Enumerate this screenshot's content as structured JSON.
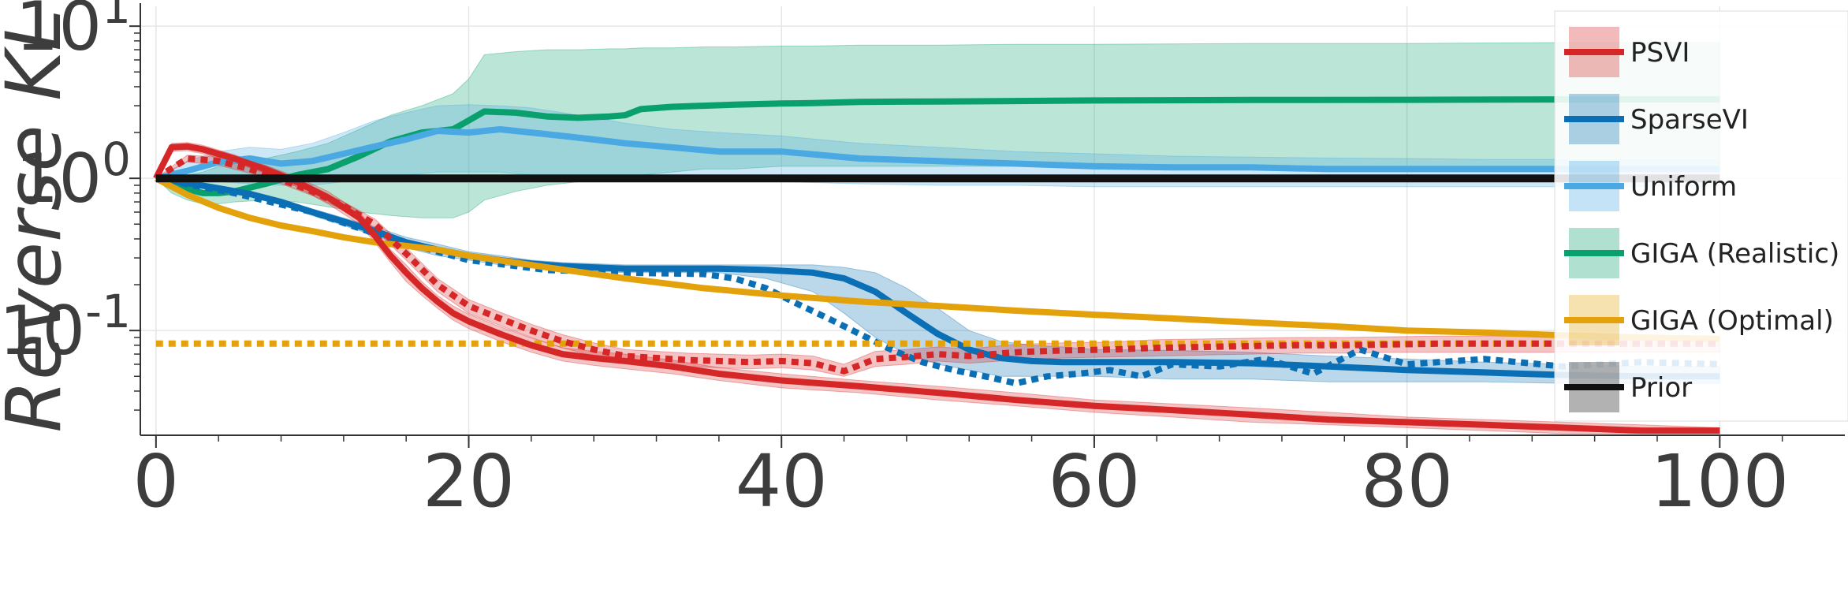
{
  "chart_data": {
    "type": "line",
    "title": "",
    "xlabel": "",
    "ylabel": "Reverse KL",
    "yscale": "log",
    "xlim": [
      -1,
      108
    ],
    "ylim": [
      0.0205,
      13.5
    ],
    "xticks": [
      0,
      20,
      40,
      60,
      80,
      100
    ],
    "xtick_labels": [
      "0",
      "20",
      "40",
      "60",
      "80",
      "100"
    ],
    "yticks": [
      {
        "value": 10,
        "base": "10",
        "exp": "1"
      },
      {
        "value": 1,
        "base": "10",
        "exp": "0"
      },
      {
        "value": 0.1,
        "base": "10",
        "exp": "-1"
      }
    ],
    "grid": true,
    "legend_position": "right",
    "legend": [
      {
        "label": "PSVI",
        "color": "#d62728"
      },
      {
        "label": "SparseVI",
        "color": "#0a6fb5"
      },
      {
        "label": "Uniform",
        "color": "#4aa8e3"
      },
      {
        "label": "GIGA (Realistic)",
        "color": "#0aa06e"
      },
      {
        "label": "GIGA (Optimal)",
        "color": "#e3a20b"
      },
      {
        "label": "Prior",
        "color": "#111111"
      }
    ],
    "series": [
      {
        "name": "GIGA (Realistic)",
        "color": "#0aa06e",
        "style": "solid",
        "x": [
          0,
          1,
          2,
          3,
          4,
          5,
          7,
          9,
          11,
          13,
          15,
          17,
          19,
          20,
          21,
          23,
          25,
          27,
          29,
          30,
          31,
          33,
          35,
          37,
          40,
          42,
          45,
          50,
          55,
          60,
          70,
          80,
          90,
          100
        ],
        "y": [
          1.0,
          0.9,
          0.85,
          0.8,
          0.8,
          0.82,
          0.92,
          1.05,
          1.15,
          1.4,
          1.75,
          2.0,
          2.1,
          2.4,
          2.75,
          2.7,
          2.55,
          2.5,
          2.55,
          2.6,
          2.85,
          2.95,
          3.0,
          3.05,
          3.1,
          3.12,
          3.18,
          3.2,
          3.22,
          3.25,
          3.27,
          3.28,
          3.3,
          3.3
        ],
        "band_low": [
          1.0,
          0.8,
          0.72,
          0.68,
          0.68,
          0.7,
          0.72,
          0.7,
          0.65,
          0.6,
          0.57,
          0.55,
          0.55,
          0.6,
          0.72,
          0.82,
          0.9,
          0.95,
          1.0,
          1.0,
          1.05,
          1.1,
          1.15,
          1.15,
          1.2,
          1.2,
          1.2,
          1.2,
          1.2,
          1.2,
          1.2,
          1.2,
          1.2,
          1.2
        ],
        "band_high": [
          1.0,
          1.05,
          1.05,
          1.1,
          1.2,
          1.25,
          1.35,
          1.5,
          1.7,
          2.1,
          2.6,
          3.0,
          3.6,
          4.5,
          6.5,
          6.8,
          7.0,
          7.0,
          7.1,
          7.1,
          7.2,
          7.2,
          7.3,
          7.3,
          7.4,
          7.4,
          7.5,
          7.5,
          7.6,
          7.6,
          7.7,
          7.7,
          7.8,
          7.8
        ]
      },
      {
        "name": "Uniform",
        "color": "#4aa8e3",
        "style": "solid",
        "x": [
          0,
          2,
          4,
          6,
          8,
          10,
          12,
          14,
          16,
          18,
          20,
          22,
          24,
          26,
          28,
          30,
          33,
          36,
          40,
          45,
          50,
          55,
          60,
          65,
          70,
          75,
          80,
          85,
          90,
          95,
          100
        ],
        "y": [
          1.0,
          1.12,
          1.28,
          1.35,
          1.25,
          1.3,
          1.45,
          1.62,
          1.8,
          2.05,
          2.0,
          2.1,
          2.0,
          1.9,
          1.8,
          1.7,
          1.6,
          1.5,
          1.5,
          1.35,
          1.3,
          1.25,
          1.2,
          1.18,
          1.18,
          1.15,
          1.15,
          1.15,
          1.15,
          1.15,
          1.15
        ],
        "band_low": [
          1.0,
          0.95,
          0.95,
          0.92,
          0.9,
          0.9,
          0.95,
          1.0,
          1.05,
          1.1,
          1.1,
          1.1,
          1.05,
          1.05,
          1.0,
          1.0,
          0.97,
          0.95,
          0.95,
          0.92,
          0.9,
          0.9,
          0.88,
          0.88,
          0.88,
          0.88,
          0.88,
          0.88,
          0.88,
          0.88,
          0.88
        ],
        "band_high": [
          1.0,
          1.3,
          1.5,
          1.6,
          1.55,
          1.7,
          2.0,
          2.4,
          2.7,
          3.0,
          3.05,
          3.0,
          2.9,
          2.7,
          2.5,
          2.3,
          2.1,
          2.0,
          1.9,
          1.7,
          1.6,
          1.5,
          1.45,
          1.4,
          1.38,
          1.36,
          1.35,
          1.33,
          1.33,
          1.33,
          1.33
        ]
      },
      {
        "name": "SparseVI",
        "color": "#0a6fb5",
        "style": "solid",
        "x": [
          0,
          2,
          4,
          6,
          8,
          10,
          12,
          14,
          16,
          18,
          20,
          22,
          24,
          26,
          28,
          30,
          33,
          36,
          39,
          42,
          44,
          46,
          48,
          50,
          52,
          54,
          56,
          58,
          60,
          65,
          70,
          75,
          80,
          85,
          90,
          95,
          100
        ],
        "y": [
          1.0,
          0.93,
          0.86,
          0.79,
          0.7,
          0.6,
          0.52,
          0.45,
          0.38,
          0.34,
          0.31,
          0.29,
          0.275,
          0.265,
          0.26,
          0.255,
          0.255,
          0.255,
          0.25,
          0.24,
          0.22,
          0.18,
          0.13,
          0.095,
          0.075,
          0.066,
          0.063,
          0.062,
          0.062,
          0.062,
          0.061,
          0.058,
          0.055,
          0.053,
          0.051,
          0.05,
          0.05
        ],
        "band_low": [
          1.0,
          0.9,
          0.83,
          0.76,
          0.67,
          0.57,
          0.49,
          0.42,
          0.35,
          0.31,
          0.29,
          0.27,
          0.26,
          0.25,
          0.245,
          0.24,
          0.24,
          0.24,
          0.22,
          0.18,
          0.13,
          0.09,
          0.07,
          0.06,
          0.055,
          0.05,
          0.05,
          0.05,
          0.05,
          0.048,
          0.048,
          0.046,
          0.046,
          0.046,
          0.045,
          0.045,
          0.045
        ],
        "band_high": [
          1.0,
          0.96,
          0.89,
          0.82,
          0.73,
          0.63,
          0.55,
          0.48,
          0.41,
          0.37,
          0.33,
          0.31,
          0.29,
          0.28,
          0.275,
          0.27,
          0.27,
          0.27,
          0.27,
          0.27,
          0.26,
          0.24,
          0.19,
          0.14,
          0.1,
          0.085,
          0.08,
          0.078,
          0.075,
          0.074,
          0.072,
          0.068,
          0.065,
          0.062,
          0.06,
          0.058,
          0.058
        ]
      },
      {
        "name": "SparseVI (dotted)",
        "color": "#0a6fb5",
        "style": "dotted",
        "x": [
          0,
          5,
          10,
          15,
          20,
          25,
          30,
          35,
          37,
          39,
          41,
          43,
          45,
          47,
          49,
          51,
          53,
          55,
          57,
          59,
          61,
          63,
          65,
          68,
          71,
          74,
          77,
          80,
          85,
          90,
          95,
          100
        ],
        "y": [
          1.0,
          0.8,
          0.6,
          0.4,
          0.29,
          0.25,
          0.24,
          0.235,
          0.22,
          0.19,
          0.15,
          0.12,
          0.095,
          0.075,
          0.062,
          0.055,
          0.05,
          0.045,
          0.05,
          0.052,
          0.055,
          0.05,
          0.06,
          0.058,
          0.065,
          0.052,
          0.075,
          0.06,
          0.065,
          0.058,
          0.062,
          0.06
        ]
      },
      {
        "name": "GIGA (Optimal)",
        "color": "#e3a20b",
        "style": "solid",
        "x": [
          0,
          2,
          4,
          6,
          8,
          10,
          12,
          14,
          16,
          18,
          20,
          25,
          30,
          35,
          40,
          45,
          50,
          55,
          60,
          65,
          70,
          75,
          80,
          85,
          90,
          95,
          100
        ],
        "y": [
          1.0,
          0.78,
          0.64,
          0.55,
          0.49,
          0.45,
          0.41,
          0.38,
          0.36,
          0.34,
          0.31,
          0.26,
          0.22,
          0.19,
          0.17,
          0.155,
          0.145,
          0.135,
          0.127,
          0.12,
          0.113,
          0.107,
          0.1,
          0.097,
          0.093,
          0.09,
          0.088
        ]
      },
      {
        "name": "GIGA (Optimal) (dotted)",
        "color": "#e3a20b",
        "style": "dotted",
        "x": [
          0,
          100
        ],
        "y": [
          0.082,
          0.082
        ]
      },
      {
        "name": "PSVI",
        "color": "#d62728",
        "style": "solid",
        "x": [
          0,
          1,
          2,
          3,
          5,
          7,
          9,
          11,
          13,
          14,
          15,
          16,
          17,
          18,
          19,
          20,
          22,
          24,
          26,
          28,
          30,
          33,
          36,
          40,
          45,
          50,
          55,
          60,
          65,
          70,
          75,
          80,
          85,
          90,
          95,
          100
        ],
        "y": [
          1.0,
          1.6,
          1.62,
          1.55,
          1.35,
          1.15,
          0.95,
          0.75,
          0.55,
          0.42,
          0.31,
          0.24,
          0.19,
          0.155,
          0.13,
          0.115,
          0.095,
          0.08,
          0.07,
          0.066,
          0.063,
          0.058,
          0.052,
          0.047,
          0.043,
          0.039,
          0.035,
          0.032,
          0.03,
          0.028,
          0.026,
          0.025,
          0.024,
          0.023,
          0.022,
          0.022
        ],
        "band_low": [
          1.0,
          1.5,
          1.52,
          1.45,
          1.27,
          1.08,
          0.88,
          0.68,
          0.5,
          0.38,
          0.28,
          0.21,
          0.17,
          0.14,
          0.117,
          0.103,
          0.085,
          0.072,
          0.063,
          0.059,
          0.056,
          0.052,
          0.047,
          0.042,
          0.039,
          0.035,
          0.032,
          0.029,
          0.027,
          0.025,
          0.024,
          0.023,
          0.022,
          0.021,
          0.021,
          0.021
        ],
        "band_high": [
          1.0,
          1.7,
          1.72,
          1.65,
          1.43,
          1.22,
          1.02,
          0.82,
          0.6,
          0.46,
          0.34,
          0.27,
          0.21,
          0.17,
          0.145,
          0.128,
          0.106,
          0.089,
          0.077,
          0.073,
          0.07,
          0.064,
          0.057,
          0.052,
          0.047,
          0.043,
          0.039,
          0.035,
          0.033,
          0.031,
          0.029,
          0.027,
          0.026,
          0.025,
          0.024,
          0.023
        ]
      },
      {
        "name": "PSVI (dotted)",
        "color": "#d62728",
        "style": "dotted",
        "x": [
          0,
          2,
          4,
          6,
          8,
          10,
          12,
          14,
          16,
          18,
          20,
          22,
          24,
          26,
          28,
          30,
          32,
          34,
          36,
          38,
          40,
          42,
          44,
          46,
          48,
          50,
          52,
          55,
          58,
          61,
          64,
          67,
          70,
          73,
          76,
          79,
          82,
          85,
          88,
          91,
          94,
          97,
          100
        ],
        "y": [
          1.0,
          1.35,
          1.3,
          1.15,
          0.98,
          0.82,
          0.66,
          0.5,
          0.32,
          0.2,
          0.145,
          0.12,
          0.1,
          0.085,
          0.075,
          0.068,
          0.066,
          0.064,
          0.063,
          0.062,
          0.063,
          0.061,
          0.054,
          0.065,
          0.067,
          0.07,
          0.068,
          0.072,
          0.074,
          0.075,
          0.077,
          0.078,
          0.079,
          0.08,
          0.08,
          0.081,
          0.082,
          0.082,
          0.082,
          0.082,
          0.082,
          0.082,
          0.082
        ],
        "band_low": [
          1.0,
          1.28,
          1.22,
          1.08,
          0.92,
          0.77,
          0.62,
          0.46,
          0.29,
          0.18,
          0.13,
          0.108,
          0.09,
          0.077,
          0.068,
          0.062,
          0.06,
          0.058,
          0.057,
          0.056,
          0.057,
          0.055,
          0.05,
          0.058,
          0.06,
          0.063,
          0.061,
          0.064,
          0.066,
          0.067,
          0.068,
          0.069,
          0.07,
          0.071,
          0.071,
          0.072,
          0.072,
          0.072,
          0.072,
          0.072,
          0.072,
          0.072,
          0.072
        ],
        "band_high": [
          1.0,
          1.42,
          1.38,
          1.22,
          1.04,
          0.87,
          0.7,
          0.54,
          0.35,
          0.22,
          0.16,
          0.132,
          0.11,
          0.094,
          0.083,
          0.075,
          0.073,
          0.071,
          0.07,
          0.069,
          0.07,
          0.068,
          0.06,
          0.073,
          0.075,
          0.078,
          0.076,
          0.081,
          0.083,
          0.084,
          0.087,
          0.088,
          0.089,
          0.09,
          0.09,
          0.091,
          0.092,
          0.092,
          0.092,
          0.092,
          0.092,
          0.092,
          0.092
        ]
      },
      {
        "name": "Prior",
        "color": "#111111",
        "style": "solid",
        "x": [
          0,
          100
        ],
        "y": [
          1.0,
          1.0
        ]
      }
    ]
  }
}
